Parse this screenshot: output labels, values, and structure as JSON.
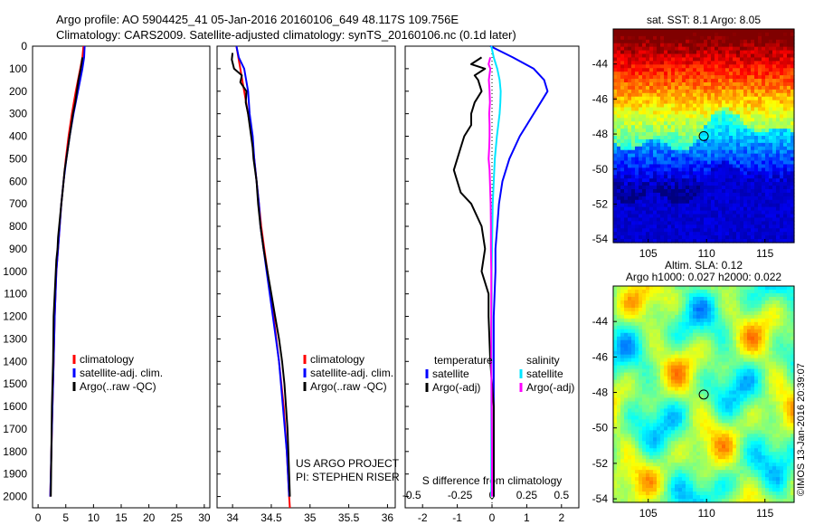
{
  "header": {
    "line1": "Argo profile: AO 5904425_41 05-Jan-2016 20160106_649 48.117S 109.756E",
    "line2": "Climatology: CARS2009. Satellite-adjusted climatology: synTS_20160106.nc (0.1d later)"
  },
  "stamp": "©IMOS 13-Jan-2016 20:39:07",
  "depth_axis": {
    "ticks": [
      0,
      100,
      200,
      300,
      400,
      500,
      600,
      700,
      800,
      900,
      1000,
      1100,
      1200,
      1300,
      1400,
      1500,
      1600,
      1700,
      1800,
      1900,
      2000
    ],
    "range": [
      0,
      2050
    ]
  },
  "colors": {
    "climatology": "#ff0000",
    "satellite": "#0000ff",
    "argo": "#000000",
    "t_satellite": "#0000ff",
    "s_satellite": "#00e5ff",
    "s_argo": "#ff00ff"
  },
  "chart_data": [
    {
      "type": "line",
      "panel": "temperature",
      "xlabel": "temperature (deg C)",
      "xlim": [
        -1,
        31
      ],
      "xticks": [
        0,
        5,
        10,
        15,
        20,
        25,
        30
      ],
      "xtick_labels": [
        "0",
        "5",
        "10",
        "15",
        "20",
        "25",
        "30"
      ],
      "legend": [
        "climatology",
        "satellite-adj. clim.",
        "Argo(..raw -QC)"
      ],
      "legend_placement": "lower-middle",
      "series": [
        {
          "name": "climatology",
          "color": "climatology",
          "depth": [
            0,
            50,
            100,
            200,
            300,
            400,
            500,
            600,
            700,
            800,
            900,
            1000,
            1200,
            1400,
            1600,
            1800,
            2000
          ],
          "values": [
            8.2,
            8.0,
            7.6,
            6.8,
            6.1,
            5.5,
            5.0,
            4.6,
            4.2,
            3.9,
            3.6,
            3.3,
            3.0,
            2.8,
            2.6,
            2.4,
            2.2
          ]
        },
        {
          "name": "satellite-adj. clim.",
          "color": "satellite",
          "depth": [
            0,
            50,
            100,
            200,
            300,
            400,
            500,
            600,
            700,
            800,
            900,
            1000,
            1200,
            1400,
            1600,
            1800,
            2000
          ],
          "values": [
            8.4,
            8.3,
            8.0,
            7.2,
            6.4,
            5.7,
            5.1,
            4.6,
            4.2,
            3.9,
            3.6,
            3.3,
            3.0,
            2.8,
            2.6,
            2.4,
            2.2
          ]
        },
        {
          "name": "Argo(..raw -QC)",
          "color": "argo",
          "depth": [
            50,
            70,
            100,
            150,
            200,
            250,
            300,
            350,
            400,
            450,
            500,
            550,
            600,
            650,
            700,
            750,
            800,
            850,
            900,
            950,
            1000,
            1100,
            1200,
            1400,
            1600,
            1800,
            2000
          ],
          "values": [
            8.0,
            7.9,
            7.7,
            7.3,
            7.0,
            6.7,
            6.3,
            6.0,
            5.7,
            5.4,
            5.1,
            4.8,
            4.6,
            4.4,
            4.2,
            4.0,
            3.8,
            3.6,
            3.5,
            3.3,
            3.2,
            3.0,
            2.8,
            2.7,
            2.5,
            2.4,
            2.3
          ]
        }
      ]
    },
    {
      "type": "line",
      "panel": "salinity",
      "xlabel": "salinity",
      "xlim": [
        33.8,
        36.1
      ],
      "xticks": [
        34,
        34.5,
        35,
        35.5,
        36
      ],
      "xtick_labels": [
        "34",
        "34.5",
        "35",
        "35.5",
        "36"
      ],
      "legend": [
        "climatology",
        "satellite-adj. clim.",
        "Argo(..raw -QC)"
      ],
      "legend_placement": "lower-right",
      "annotation": [
        "US ARGO PROJECT",
        "PI: STEPHEN RISER"
      ],
      "series": [
        {
          "name": "climatology",
          "color": "climatology",
          "depth": [
            0,
            100,
            200,
            300,
            400,
            500,
            600,
            700,
            800,
            900,
            1000,
            1200,
            1400,
            1600,
            1800,
            2000,
            2050
          ],
          "values": [
            34.05,
            34.1,
            34.15,
            34.2,
            34.25,
            34.28,
            34.31,
            34.34,
            34.37,
            34.41,
            34.45,
            34.53,
            34.6,
            34.66,
            34.7,
            34.73,
            34.74
          ]
        },
        {
          "name": "satellite-adj. clim.",
          "color": "satellite",
          "depth": [
            0,
            50,
            100,
            200,
            300,
            400,
            500,
            600,
            700,
            800,
            900,
            1000,
            1200,
            1400,
            1600,
            1800,
            2000
          ],
          "values": [
            34.05,
            34.08,
            34.15,
            34.2,
            34.22,
            34.26,
            34.28,
            34.31,
            34.34,
            34.36,
            34.4,
            34.44,
            34.52,
            34.6,
            34.65,
            34.7,
            34.73
          ]
        },
        {
          "name": "Argo(..raw -QC)",
          "color": "argo",
          "depth": [
            30,
            60,
            100,
            130,
            160,
            200,
            250,
            300,
            350,
            400,
            450,
            500,
            550,
            600,
            650,
            700,
            800,
            900,
            1000,
            1100,
            1200,
            1300,
            1400,
            1500,
            1600,
            1700,
            1800,
            1900,
            2000
          ],
          "values": [
            34.0,
            33.99,
            34.02,
            34.12,
            34.1,
            34.18,
            34.17,
            34.2,
            34.22,
            34.24,
            34.26,
            34.27,
            34.29,
            34.31,
            34.32,
            34.33,
            34.36,
            34.4,
            34.45,
            34.5,
            34.55,
            34.6,
            34.64,
            34.67,
            34.69,
            34.71,
            34.72,
            34.73,
            34.74
          ]
        }
      ]
    },
    {
      "type": "line",
      "panel": "difference",
      "xlabel": "T difference from climatology",
      "xlim": [
        -2.5,
        2.5
      ],
      "xticks": [
        -2,
        -1,
        0,
        1,
        2
      ],
      "xtick_labels": [
        "-2",
        "-1",
        "0",
        "1",
        "2"
      ],
      "secondary_axis": {
        "label": "S difference from climatology",
        "tick_labels": [
          "-0.5",
          "-0.25",
          "0",
          "0.25",
          "0.5"
        ],
        "t_positions": [
          -2,
          -1,
          0,
          1,
          2
        ]
      },
      "legend_groups": [
        {
          "title": "temperature",
          "items": [
            "satellite",
            "Argo(-adj)"
          ]
        },
        {
          "title": "salinity",
          "items": [
            "satellite",
            "Argo(-adj)"
          ]
        }
      ],
      "series": [
        {
          "name": "temperature satellite",
          "color": "t_satellite",
          "depth": [
            0,
            50,
            100,
            150,
            200,
            250,
            300,
            350,
            400,
            500,
            600,
            700,
            800,
            900,
            1000,
            1200,
            1400,
            1600,
            1800,
            2000
          ],
          "values": [
            -0.05,
            0.6,
            1.2,
            1.5,
            1.6,
            1.4,
            1.2,
            1.0,
            0.8,
            0.5,
            0.3,
            0.2,
            0.15,
            0.1,
            0.1,
            0.05,
            0.05,
            0.05,
            0.05,
            0.05
          ]
        },
        {
          "name": "temperature Argo(-adj)",
          "color": "argo",
          "depth": [
            50,
            80,
            100,
            130,
            150,
            200,
            250,
            300,
            350,
            400,
            450,
            500,
            550,
            600,
            650,
            700,
            800,
            900,
            1000,
            1100,
            1200,
            1400,
            1600,
            1800,
            2000
          ],
          "values": [
            -0.3,
            -0.6,
            -0.2,
            -0.5,
            -0.4,
            -0.3,
            -0.5,
            -0.6,
            -0.6,
            -0.8,
            -0.9,
            -1.0,
            -1.1,
            -1.0,
            -0.9,
            -0.6,
            -0.3,
            -0.2,
            -0.3,
            -0.1,
            -0.1,
            -0.05,
            0.05,
            0.05,
            0.05
          ]
        },
        {
          "name": "salinity satellite",
          "color": "s_satellite",
          "depth": [
            0,
            50,
            100,
            150,
            200,
            250,
            300,
            350,
            400,
            500,
            600,
            700,
            800,
            900,
            1000,
            1200,
            1400,
            1600,
            1800,
            2000
          ],
          "values": [
            -0.02,
            0.05,
            0.15,
            0.22,
            0.25,
            0.24,
            0.22,
            0.18,
            0.14,
            0.08,
            0.05,
            0.02,
            0.01,
            0.0,
            -0.01,
            -0.01,
            -0.01,
            -0.02,
            -0.02,
            -0.02
          ]
        },
        {
          "name": "salinity Argo(-adj)",
          "color": "s_argo",
          "depth": [
            50,
            80,
            100,
            150,
            200,
            250,
            300,
            350,
            400,
            450,
            500,
            550,
            600,
            650,
            700,
            800,
            900,
            1000,
            1100,
            1200,
            1400,
            1600,
            1800,
            2000
          ],
          "values": [
            -0.05,
            -0.1,
            -0.05,
            -0.09,
            -0.07,
            -0.06,
            -0.08,
            -0.07,
            -0.07,
            -0.08,
            -0.1,
            -0.07,
            -0.06,
            -0.05,
            -0.04,
            -0.03,
            -0.03,
            -0.02,
            -0.02,
            -0.02,
            -0.02,
            -0.01,
            0.0,
            0.0
          ]
        }
      ]
    },
    {
      "type": "heatmap",
      "panel": "sst_map",
      "title": "sat. SST: 8.1  Argo: 8.05",
      "xlim": [
        102,
        117.5
      ],
      "ylim": [
        -54.2,
        -42
      ],
      "xticks": [
        105,
        110,
        115
      ],
      "yticks": [
        -44,
        -46,
        -48,
        -50,
        -52,
        -54
      ],
      "marker": {
        "lon": 109.756,
        "lat": -48.117
      }
    },
    {
      "type": "heatmap",
      "panel": "sla_map",
      "title": [
        "Altim. SLA: 0.12",
        "Argo h1000: 0.027  h2000: 0.022"
      ],
      "xlim": [
        102,
        117.5
      ],
      "ylim": [
        -54.2,
        -42
      ],
      "xticks": [
        105,
        110,
        115
      ],
      "yticks": [
        -44,
        -46,
        -48,
        -50,
        -52,
        -54
      ],
      "marker": {
        "lon": 109.756,
        "lat": -48.117
      }
    }
  ]
}
